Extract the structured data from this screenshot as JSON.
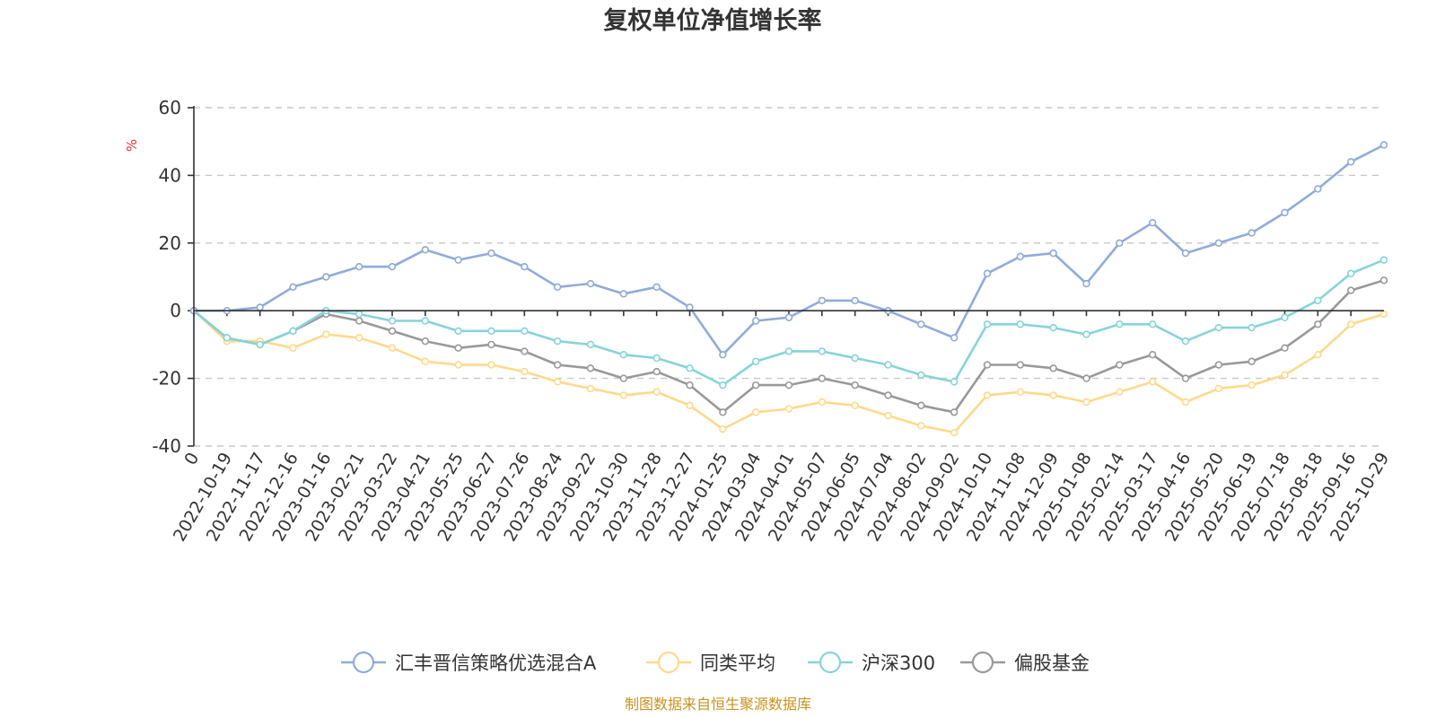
{
  "chart_data": {
    "type": "line",
    "title": "复权单位净值增长率",
    "ylabel": "%",
    "ylim": [
      -40,
      60
    ],
    "yticks": [
      "60",
      "40",
      "20",
      "0",
      "-20",
      "-40"
    ],
    "grid": true,
    "legend_position": "bottom",
    "x": [
      "0",
      "2022-10-19",
      "2022-11-17",
      "2022-12-16",
      "2023-01-16",
      "2023-02-21",
      "2023-03-22",
      "2023-04-21",
      "2023-05-25",
      "2023-06-27",
      "2023-07-26",
      "2023-08-24",
      "2023-09-22",
      "2023-10-30",
      "2023-11-28",
      "2023-12-27",
      "2024-01-25",
      "2024-03-04",
      "2024-04-01",
      "2024-05-07",
      "2024-06-05",
      "2024-07-04",
      "2024-08-02",
      "2024-09-02",
      "2024-10-10",
      "2024-11-08",
      "2024-12-09",
      "2025-01-08",
      "2025-02-14",
      "2025-03-17",
      "2025-04-16",
      "2025-05-20",
      "2025-06-19",
      "2025-07-18",
      "2025-08-18",
      "2025-09-16",
      "2025-10-29"
    ],
    "series": [
      {
        "name": "汇丰晋信策略优选混合A",
        "color": "#8fabd9",
        "values": [
          0,
          0,
          1,
          7,
          10,
          13,
          13,
          18,
          15,
          17,
          13,
          7,
          8,
          5,
          7,
          1,
          -13,
          -3,
          -2,
          3,
          3,
          0,
          -4,
          -8,
          11,
          16,
          17,
          8,
          20,
          26,
          17,
          20,
          23,
          29,
          36,
          44,
          49
        ]
      },
      {
        "name": "同类平均",
        "color": "#ffd98b",
        "values": [
          0,
          -9,
          -9,
          -11,
          -7,
          -8,
          -11,
          -15,
          -16,
          -16,
          -18,
          -21,
          -23,
          -25,
          -24,
          -28,
          -35,
          -30,
          -29,
          -27,
          -28,
          -31,
          -34,
          -36,
          -25,
          -24,
          -25,
          -27,
          -24,
          -21,
          -27,
          -23,
          -22,
          -19,
          -13,
          -4,
          -1
        ]
      },
      {
        "name": "沪深300",
        "color": "#86d4d8",
        "values": [
          0,
          -8,
          -10,
          -6,
          0,
          -1,
          -3,
          -3,
          -6,
          -6,
          -6,
          -9,
          -10,
          -13,
          -14,
          -17,
          -22,
          -15,
          -12,
          -12,
          -14,
          -16,
          -19,
          -21,
          -4,
          -4,
          -5,
          -7,
          -4,
          -4,
          -9,
          -5,
          -5,
          -2,
          3,
          11,
          15
        ]
      },
      {
        "name": "偏股基金",
        "color": "#999999",
        "values": [
          0,
          -8,
          -10,
          -6,
          -1,
          -3,
          -6,
          -9,
          -11,
          -10,
          -12,
          -16,
          -17,
          -20,
          -18,
          -22,
          -30,
          -22,
          -22,
          -20,
          -22,
          -25,
          -28,
          -30,
          -16,
          -16,
          -17,
          -20,
          -16,
          -13,
          -20,
          -16,
          -15,
          -11,
          -4,
          6,
          9
        ]
      }
    ]
  },
  "footer": {
    "source": "制图数据来自恒生聚源数据库"
  }
}
